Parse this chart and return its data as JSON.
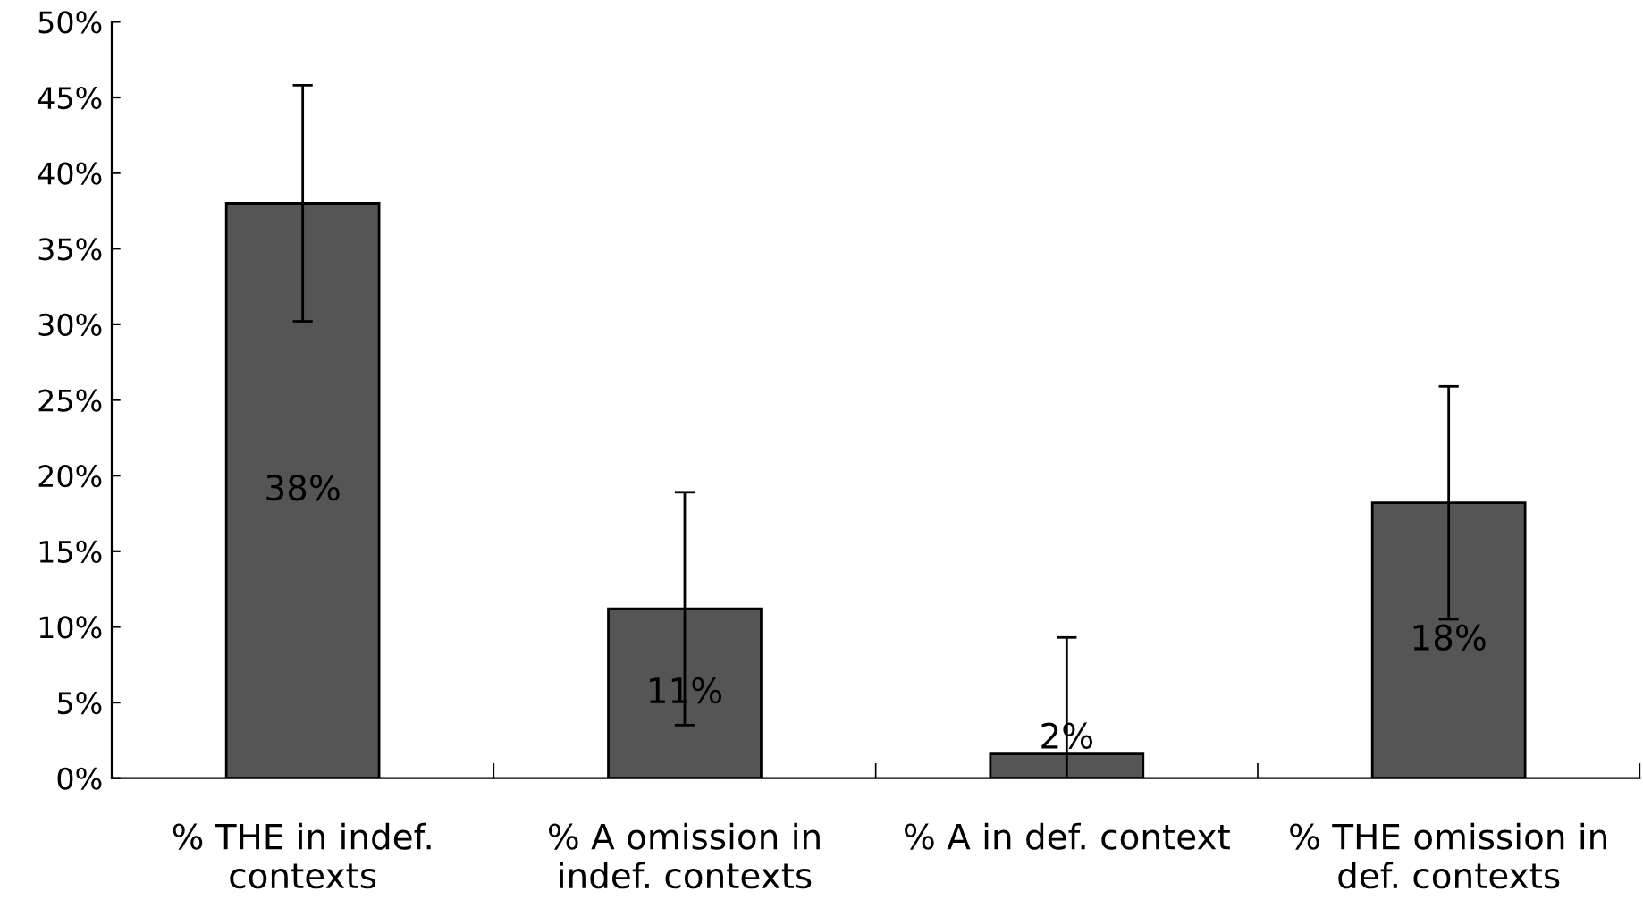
{
  "chart_data": {
    "type": "bar",
    "categories": [
      "% THE in indef.\ncontexts",
      "% A omission in\nindef. contexts",
      "% A in def. context",
      "% THE omission in\ndef. contexts"
    ],
    "values": [
      38.0,
      11.2,
      1.6,
      18.2
    ],
    "value_labels": [
      "38%",
      "11%",
      "2%",
      "18%"
    ],
    "errors": [
      7.8,
      7.7,
      7.7,
      7.7
    ],
    "color": "#555555",
    "ylim": [
      0,
      50
    ],
    "yticks": [
      {
        "value": 0,
        "label": "0%"
      },
      {
        "value": 5,
        "label": "5%"
      },
      {
        "value": 10,
        "label": "10%"
      },
      {
        "value": 15,
        "label": "15%"
      },
      {
        "value": 20,
        "label": "20%"
      },
      {
        "value": 25,
        "label": "25%"
      },
      {
        "value": 30,
        "label": "30%"
      },
      {
        "value": 35,
        "label": "35%"
      },
      {
        "value": 40,
        "label": "40%"
      },
      {
        "value": 45,
        "label": "45%"
      },
      {
        "value": 50,
        "label": "50%"
      }
    ],
    "grid": false
  }
}
